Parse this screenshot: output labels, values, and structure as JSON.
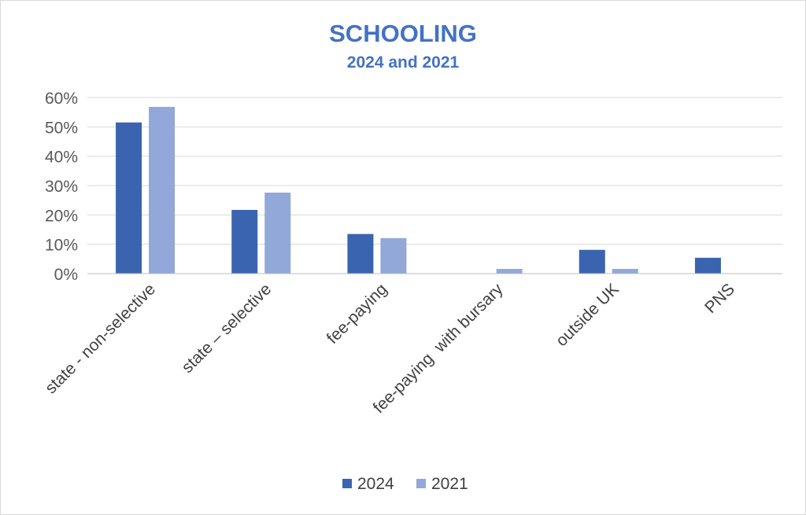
{
  "chart_data": {
    "type": "bar",
    "title": "SCHOOLING",
    "subtitle": "2024 and 2021",
    "categories": [
      "state - non-selective",
      "state – selective",
      "fee-paying",
      "fee-paying  with bursary",
      "outside UK",
      "PNS"
    ],
    "series": [
      {
        "name": "2024",
        "color": "#3a64b0",
        "values": [
          0.515,
          0.217,
          0.135,
          0.0,
          0.081,
          0.054
        ]
      },
      {
        "name": "2021",
        "color": "#91a8d9",
        "values": [
          0.568,
          0.276,
          0.121,
          0.016,
          0.016,
          0.0
        ]
      }
    ],
    "ylim": [
      0,
      0.6
    ],
    "yticks": [
      0,
      0.1,
      0.2,
      0.3,
      0.4,
      0.5,
      0.6
    ],
    "ytick_labels": [
      "0%",
      "10%",
      "20%",
      "30%",
      "40%",
      "50%",
      "60%"
    ],
    "grid": true,
    "legend_position": "bottom",
    "title_color": "#4472c4"
  }
}
